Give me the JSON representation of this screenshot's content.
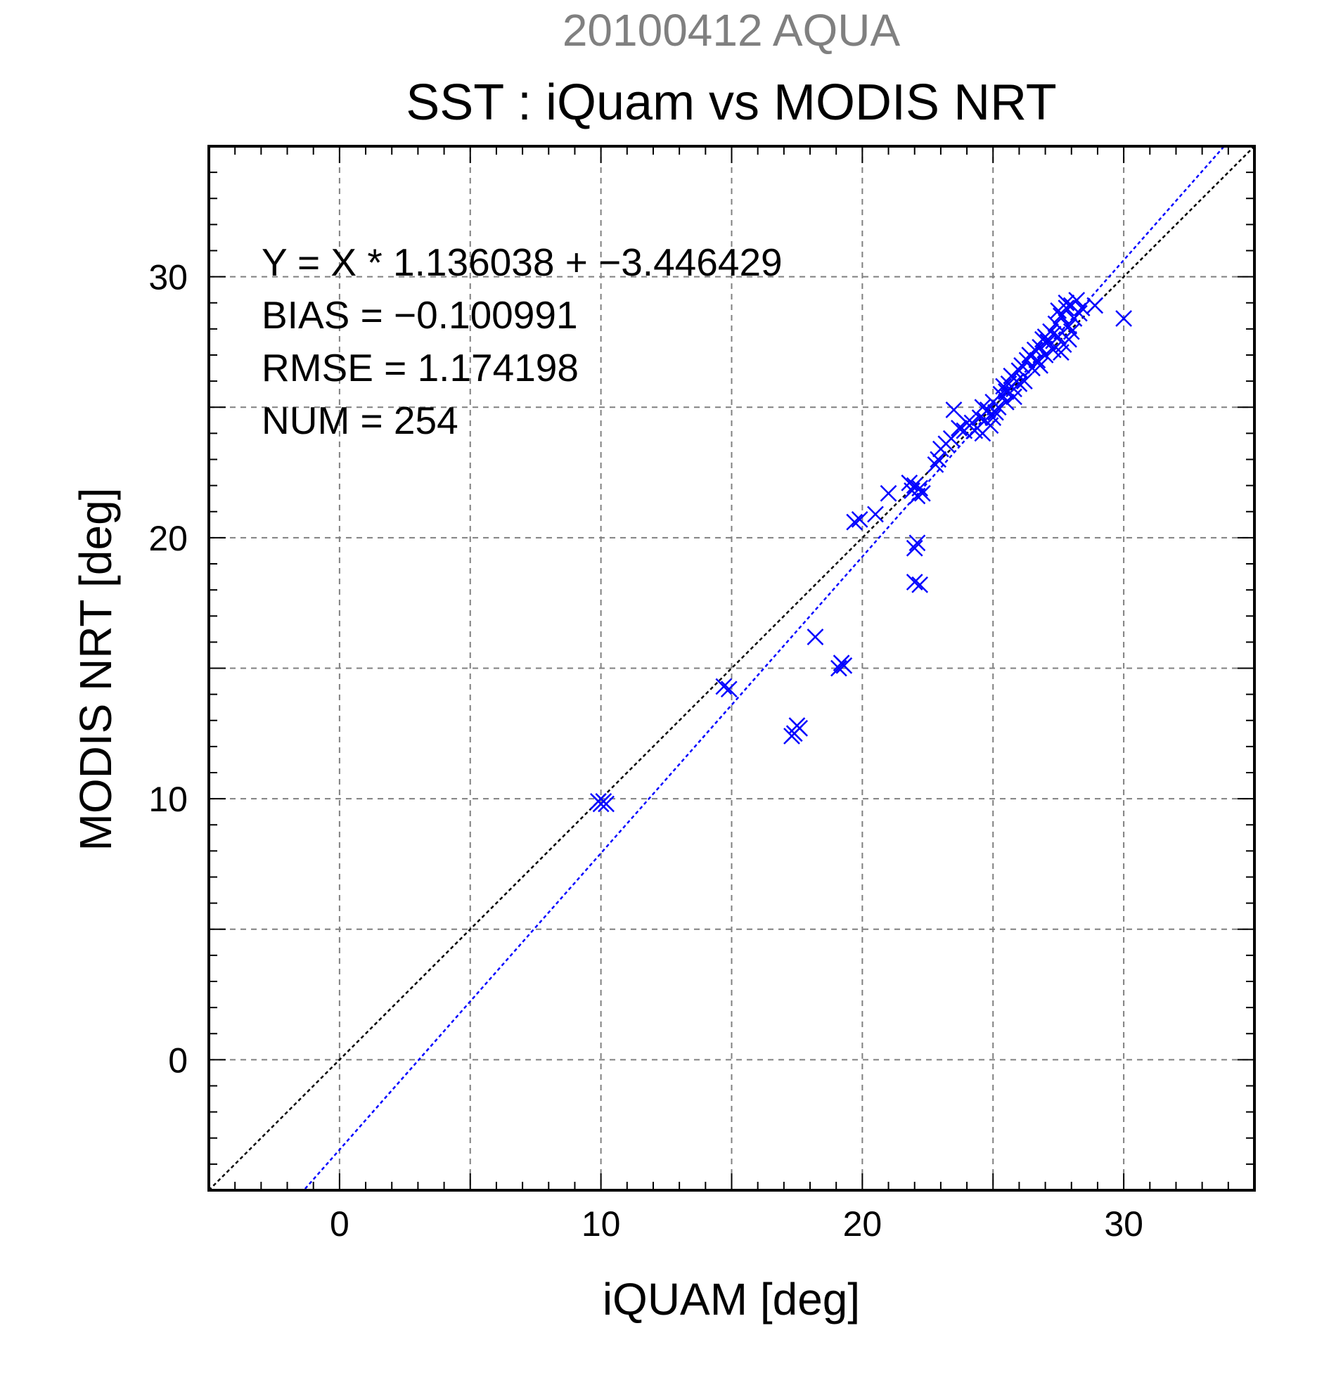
{
  "chart_data": {
    "type": "scatter",
    "title": "20100412 AQUA",
    "subtitle": "SST : iQuam vs MODIS NRT",
    "xlabel": "iQUAM [deg]",
    "ylabel": "MODIS NRT [deg]",
    "xlim": [
      -5,
      35
    ],
    "ylim": [
      -5,
      35
    ],
    "xticks": [
      0,
      10,
      20,
      30
    ],
    "yticks": [
      0,
      10,
      20,
      30
    ],
    "grid": true,
    "colors": {
      "points": "#0000ff",
      "fit_line": "#0000ff",
      "identity_line": "#000000",
      "grid": "#808080"
    },
    "marker": "x-icon",
    "stats": [
      "Y = X * 1.136038 + −3.446429",
      "BIAS = −0.100991",
      "RMSE = 1.174198",
      "NUM = 254"
    ],
    "fit": {
      "slope": 1.136038,
      "intercept": -3.446429
    },
    "identity": {
      "slope": 1,
      "intercept": 0
    },
    "points": [
      [
        9.9,
        9.9
      ],
      [
        10.0,
        9.8
      ],
      [
        10.2,
        9.8
      ],
      [
        10.1,
        9.9
      ],
      [
        14.7,
        14.3
      ],
      [
        14.9,
        14.2
      ],
      [
        17.3,
        12.4
      ],
      [
        17.4,
        12.5
      ],
      [
        17.5,
        12.8
      ],
      [
        17.6,
        12.7
      ],
      [
        18.2,
        16.2
      ],
      [
        19.1,
        15.0
      ],
      [
        19.2,
        15.2
      ],
      [
        19.3,
        15.1
      ],
      [
        19.7,
        20.6
      ],
      [
        19.9,
        20.7
      ],
      [
        20.5,
        20.9
      ],
      [
        21.0,
        21.7
      ],
      [
        21.8,
        22.1
      ],
      [
        21.9,
        21.8
      ],
      [
        22.0,
        22.0
      ],
      [
        22.1,
        21.6
      ],
      [
        22.2,
        21.9
      ],
      [
        22.3,
        21.7
      ],
      [
        22.0,
        19.6
      ],
      [
        22.1,
        19.8
      ],
      [
        22.0,
        18.3
      ],
      [
        22.2,
        18.2
      ],
      [
        22.8,
        22.8
      ],
      [
        22.9,
        23.0
      ],
      [
        23.0,
        23.4
      ],
      [
        23.2,
        23.6
      ],
      [
        23.4,
        23.8
      ],
      [
        23.5,
        24.9
      ],
      [
        23.7,
        24.2
      ],
      [
        23.9,
        24.1
      ],
      [
        24.0,
        24.4
      ],
      [
        24.1,
        24.3
      ],
      [
        24.3,
        24.1
      ],
      [
        24.4,
        24.2
      ],
      [
        24.5,
        24.6
      ],
      [
        24.6,
        25.0
      ],
      [
        24.7,
        24.5
      ],
      [
        24.9,
        24.3
      ],
      [
        24.8,
        24.9
      ],
      [
        25.0,
        25.2
      ],
      [
        25.1,
        24.8
      ],
      [
        25.2,
        25.0
      ],
      [
        25.3,
        25.5
      ],
      [
        25.4,
        25.8
      ],
      [
        25.5,
        25.2
      ],
      [
        25.6,
        25.9
      ],
      [
        25.7,
        26.2
      ],
      [
        25.8,
        25.7
      ],
      [
        25.9,
        26.0
      ],
      [
        26.0,
        26.4
      ],
      [
        26.1,
        26.6
      ],
      [
        26.2,
        26.0
      ],
      [
        26.3,
        26.8
      ],
      [
        26.4,
        27.0
      ],
      [
        26.5,
        26.5
      ],
      [
        26.6,
        27.2
      ],
      [
        26.7,
        26.8
      ],
      [
        26.8,
        27.3
      ],
      [
        26.9,
        27.6
      ],
      [
        27.0,
        27.0
      ],
      [
        27.1,
        27.5
      ],
      [
        27.2,
        27.9
      ],
      [
        27.3,
        27.2
      ],
      [
        27.4,
        28.2
      ],
      [
        27.5,
        27.7
      ],
      [
        27.6,
        28.5
      ],
      [
        27.7,
        27.4
      ],
      [
        27.8,
        28.8
      ],
      [
        27.9,
        28.1
      ],
      [
        28.0,
        28.9
      ],
      [
        28.1,
        28.4
      ],
      [
        28.2,
        29.1
      ],
      [
        27.5,
        28.7
      ],
      [
        27.8,
        29.0
      ],
      [
        28.3,
        28.6
      ],
      [
        28.4,
        28.8
      ],
      [
        27.3,
        27.8
      ],
      [
        27.6,
        27.1
      ],
      [
        27.9,
        27.6
      ],
      [
        28.0,
        27.9
      ],
      [
        26.8,
        26.6
      ],
      [
        27.0,
        27.7
      ],
      [
        25.8,
        25.4
      ],
      [
        26.0,
        25.9
      ],
      [
        25.5,
        25.6
      ],
      [
        24.2,
        24.4
      ],
      [
        24.6,
        24.0
      ],
      [
        25.0,
        24.6
      ],
      [
        28.9,
        28.9
      ],
      [
        30.0,
        28.4
      ]
    ]
  }
}
